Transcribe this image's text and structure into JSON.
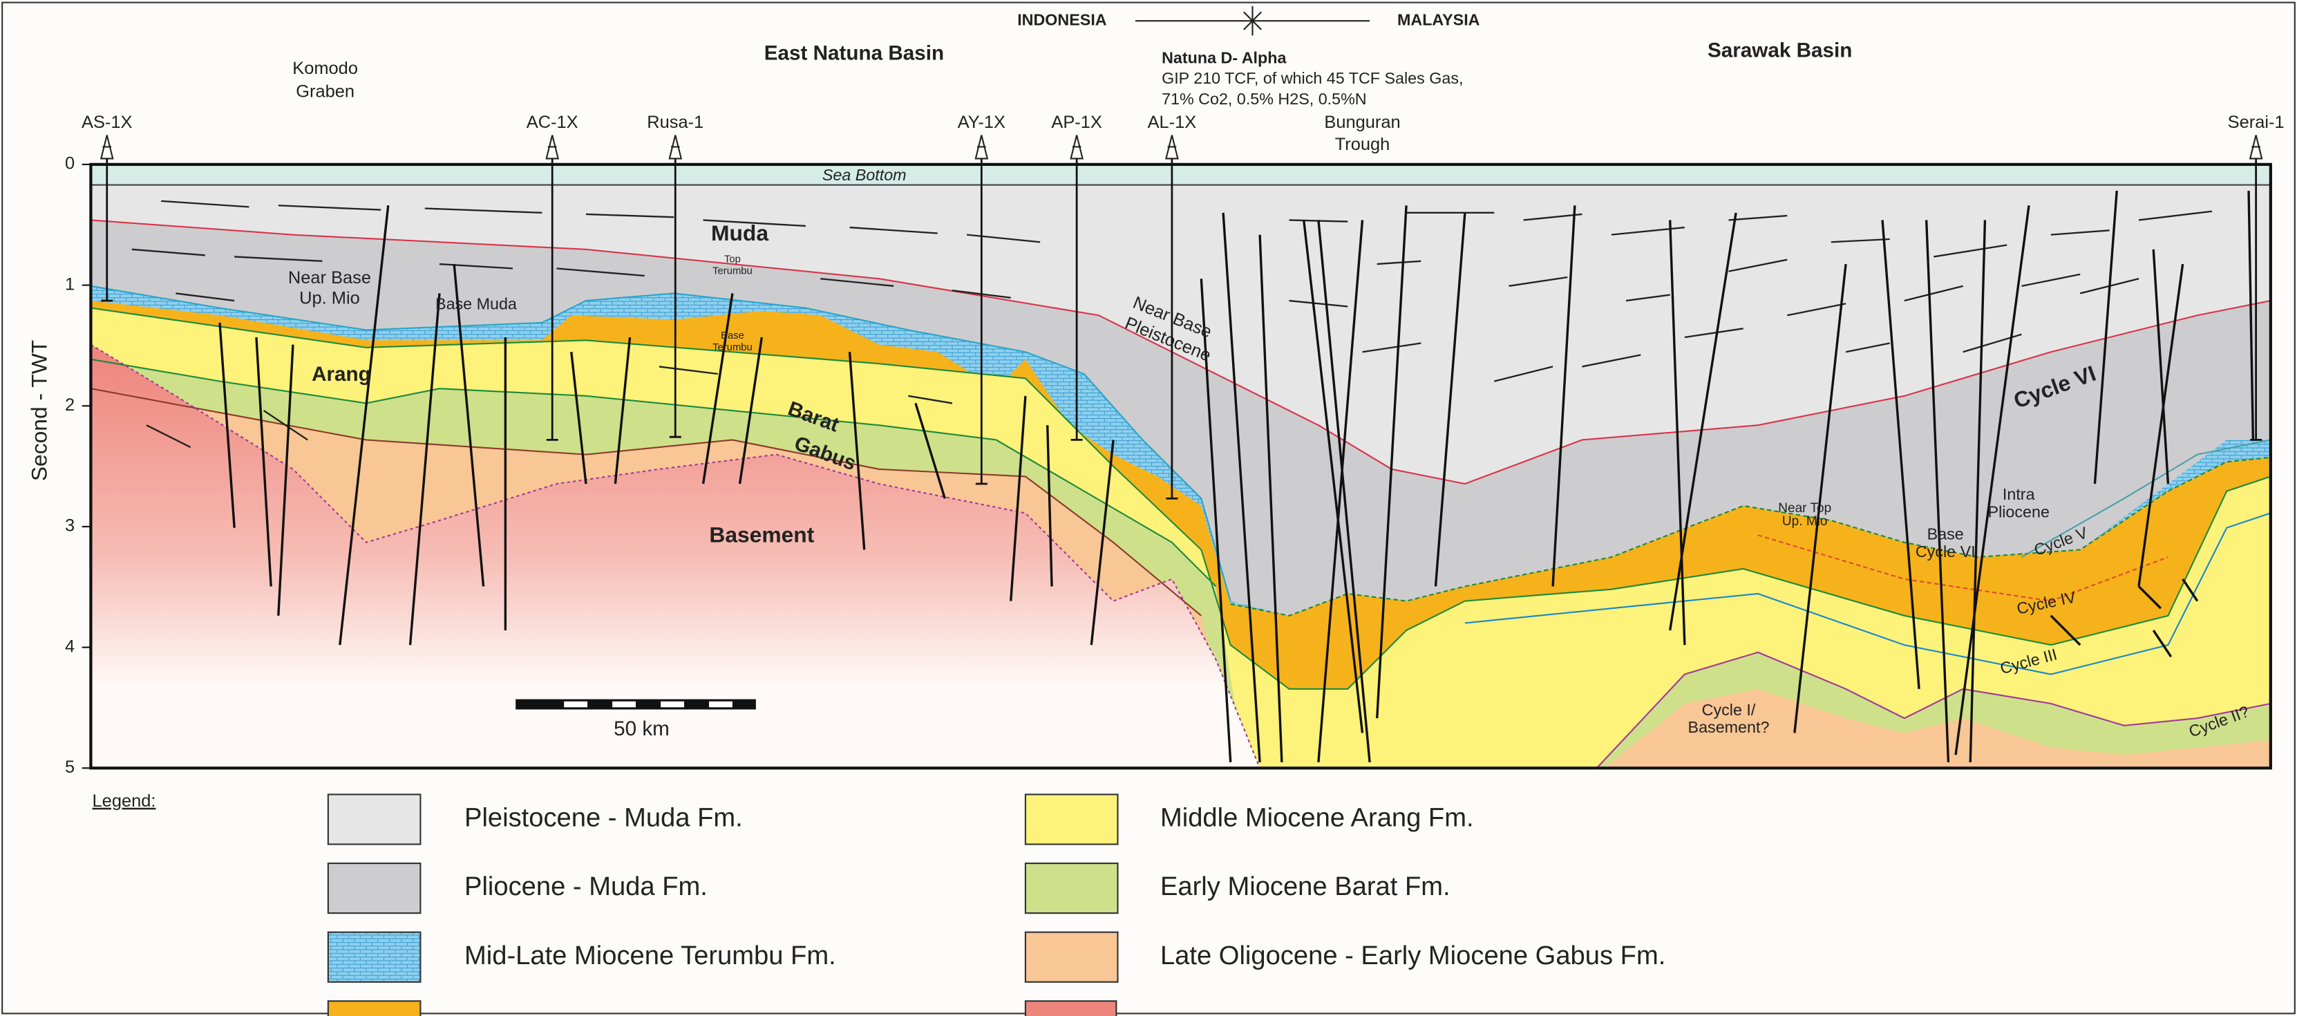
{
  "header": {
    "country_left": "INDONESIA",
    "country_right": "MALAYSIA",
    "basin_west": "East Natuna Basin",
    "basin_east": "Sarawak Basin",
    "komodo_graben": [
      "Komodo",
      "Graben"
    ],
    "natuna": {
      "title": "Natuna D- Alpha",
      "lines": [
        "GIP 210 TCF, of which 45 TCF Sales Gas,",
        "71% Co2, 0.5% H2S, 0.5%N"
      ]
    },
    "bunguran_trough": [
      "Bunguran",
      "Trough"
    ]
  },
  "wells": [
    "AS-1X",
    "AC-1X",
    "Rusa-1",
    "AY-1X",
    "AP-1X",
    "AL-1X",
    "Serai-1"
  ],
  "axis": {
    "title": "Second - TWT",
    "ticks": [
      0,
      1,
      2,
      3,
      4,
      5
    ]
  },
  "section_labels": {
    "sea_bottom": "Sea Bottom",
    "muda": "Muda",
    "top_terumbu": [
      "Top",
      "Terumbu"
    ],
    "near_base_up_mio": [
      "Near Base",
      "Up. Mio"
    ],
    "base_muda": "Base Muda",
    "arang": "Arang",
    "base_terumbu": [
      "Base",
      "Terumbu"
    ],
    "barat": "Barat",
    "gabus": "Gabus",
    "basement": "Basement",
    "near_base_pleistocene": [
      "Near Base",
      "Pleistocene"
    ],
    "cycle_vi": "Cycle VI",
    "near_top_up_mio": [
      "Near Top",
      "Up. Mio"
    ],
    "intra_pliocene": [
      "Intra",
      "Pliocene"
    ],
    "base_cycle_vi": [
      "Base",
      "Cycle VI"
    ],
    "cycle_v": "Cycle V",
    "cycle_iv": "Cycle IV",
    "cycle_iii": "Cycle III",
    "cycle_i": [
      "Cycle I/",
      "Basement?"
    ],
    "cycle_ii": "Cycle II?"
  },
  "scale_bar": {
    "label": "50 km"
  },
  "legend": {
    "title": "Legend:",
    "items": [
      {
        "label": "Pleistocene - Muda Fm.",
        "color": "#e6e6e6"
      },
      {
        "label": "Pliocene - Muda Fm.",
        "color": "#cdcdcf"
      },
      {
        "label": "Mid-Late Miocene Terumbu Fm.",
        "color": "#8fd0ee"
      },
      {
        "label": "Middle Miocene Arang Fm.",
        "color": "#fdf27a"
      },
      {
        "label": "Early Miocene Barat Fm.",
        "color": "#cfe08a"
      },
      {
        "label": "Late Oligocene - Early Miocene Gabus Fm.",
        "color": "#f9c695"
      }
    ]
  }
}
